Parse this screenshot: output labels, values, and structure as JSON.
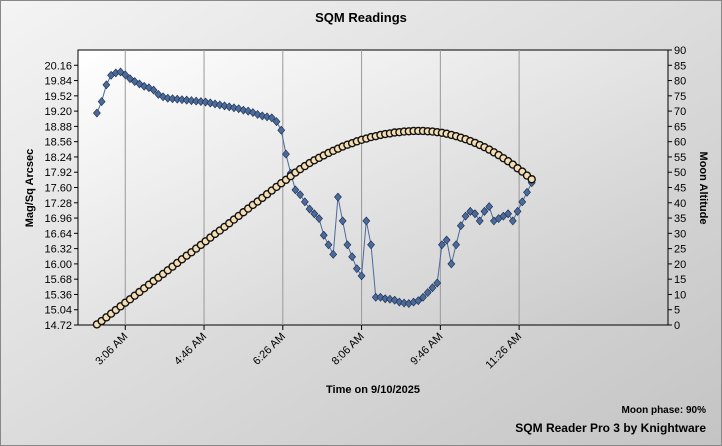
{
  "chart_data": {
    "type": "scatter",
    "title": "SQM Readings",
    "x_label": "Time on 9/10/2025",
    "y_label": "Mag/Sq Arcsec",
    "y2_label": "Moon Altitude",
    "annotations": [
      "Moon phase: 90%",
      "SQM Reader Pro 3 by Knightware"
    ],
    "x": [
      150,
      156,
      162,
      168,
      174,
      180,
      186,
      192,
      198,
      204,
      210,
      216,
      222,
      228,
      234,
      240,
      246,
      252,
      258,
      264,
      270,
      276,
      282,
      288,
      294,
      300,
      306,
      312,
      318,
      324,
      330,
      336,
      342,
      348,
      354,
      360,
      366,
      372,
      378,
      384,
      390,
      396,
      402,
      408,
      414,
      420,
      426,
      432,
      438,
      444,
      450,
      456,
      462,
      468,
      474,
      480,
      486,
      492,
      498,
      504,
      510,
      516,
      522,
      528,
      534,
      540,
      546,
      552,
      558,
      564,
      570,
      576,
      582,
      588,
      594,
      600,
      606,
      612,
      618,
      624,
      630,
      636,
      642,
      648,
      654,
      660,
      666,
      672,
      678,
      684,
      690,
      696,
      702
    ],
    "xlim": [
      126,
      875
    ],
    "xticks": [
      {
        "value": 186,
        "label": "3:06 AM"
      },
      {
        "value": 286,
        "label": "4:46 AM"
      },
      {
        "value": 386,
        "label": "6:26 AM"
      },
      {
        "value": 486,
        "label": "8:06 AM"
      },
      {
        "value": 586,
        "label": "9:46 AM"
      },
      {
        "value": 686,
        "label": "11:26 AM"
      }
    ],
    "ylim": [
      14.72,
      20.48
    ],
    "yticks": [
      14.72,
      15.04,
      15.36,
      15.68,
      {
        "value": 16,
        "label": "16.00"
      },
      16.32,
      16.64,
      16.96,
      17.28,
      {
        "value": 17.6,
        "label": "17.60"
      },
      17.92,
      18.24,
      18.56,
      18.88,
      {
        "value": 19.2,
        "label": "19.20"
      },
      19.52,
      19.84,
      20.16
    ],
    "y2lim": [
      0,
      90
    ],
    "y2ticks": [
      0,
      5,
      10,
      15,
      20,
      25,
      30,
      35,
      40,
      45,
      50,
      55,
      60,
      65,
      70,
      75,
      80,
      85,
      90
    ],
    "grid": true,
    "series": [
      {
        "color": "#4a6a9a",
        "values": [
          19.16,
          19.4,
          19.75,
          19.95,
          20.0,
          20.02,
          19.96,
          19.88,
          19.82,
          19.77,
          19.72,
          19.69,
          19.64,
          19.55,
          19.5,
          19.47,
          19.46,
          19.45,
          19.44,
          19.43,
          19.42,
          19.41,
          19.4,
          19.39,
          19.37,
          19.35,
          19.33,
          19.31,
          19.29,
          19.27,
          19.25,
          19.22,
          19.2,
          19.17,
          19.13,
          19.1,
          19.08,
          19.06,
          18.98,
          18.8,
          18.3,
          17.9,
          17.55,
          17.45,
          17.3,
          17.15,
          17.05,
          16.95,
          16.6,
          16.4,
          16.2,
          17.4,
          16.9,
          16.4,
          16.15,
          15.9,
          15.75,
          16.9,
          16.4,
          15.3,
          15.3,
          15.27,
          15.26,
          15.24,
          15.2,
          15.18,
          15.17,
          15.2,
          15.23,
          15.3,
          15.4,
          15.5,
          15.6,
          16.4,
          16.5,
          16.0,
          16.4,
          16.8,
          17.0,
          17.1,
          17.05,
          16.9,
          17.1,
          17.2,
          16.9,
          16.95,
          17.0,
          17.05,
          16.9,
          17.1,
          17.3,
          17.5,
          17.7
        ]
      },
      {
        "color": "#f5deb3",
        "axis": "y2",
        "values": [
          0.2,
          1.3,
          2.5,
          3.7,
          4.9,
          6.1,
          7.3,
          8.4,
          9.6,
          10.8,
          12.0,
          13.2,
          14.4,
          15.5,
          16.7,
          17.9,
          19.1,
          20.3,
          21.5,
          22.7,
          23.8,
          25.0,
          26.2,
          27.4,
          28.6,
          29.8,
          30.9,
          32.1,
          33.3,
          34.5,
          35.7,
          36.9,
          38.1,
          39.3,
          40.4,
          41.6,
          42.8,
          44.0,
          45.2,
          46.4,
          47.5,
          48.7,
          49.9,
          51.0,
          52.0,
          53.0,
          53.9,
          54.7,
          55.5,
          56.3,
          57.0,
          57.7,
          58.4,
          59.0,
          59.5,
          60.1,
          60.6,
          61.0,
          61.5,
          61.8,
          62.2,
          62.5,
          62.7,
          63.0,
          63.1,
          63.3,
          63.4,
          63.5,
          63.5,
          63.5,
          63.4,
          63.3,
          63.1,
          62.9,
          62.6,
          62.2,
          61.8,
          61.3,
          60.8,
          60.2,
          59.6,
          58.9,
          58.2,
          57.4,
          56.5,
          55.6,
          54.6,
          53.6,
          52.5,
          51.3,
          50.2,
          48.9,
          47.7
        ]
      }
    ]
  }
}
